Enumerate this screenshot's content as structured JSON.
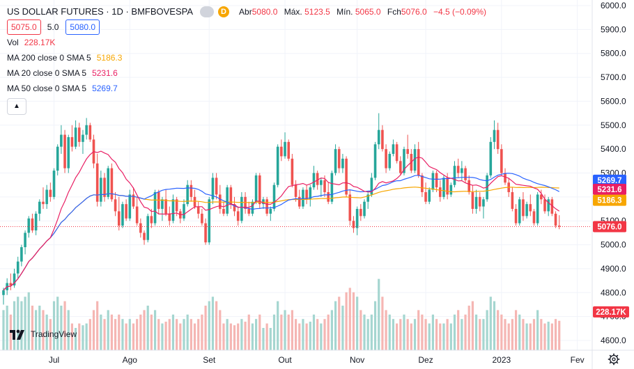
{
  "header": {
    "title": "US DOLLAR FUTURES · 1D · BMFBOVESPA",
    "ohlc": [
      {
        "key": "Abr",
        "value": "5080.0"
      },
      {
        "key": "Máx.",
        "value": "5123.5"
      },
      {
        "key": "Mín.",
        "value": "5065.0"
      },
      {
        "key": "Fch",
        "value": "5076.0"
      }
    ],
    "change": "−4.5 (−0.09%)",
    "sell_price": "5075.0",
    "spread": "5.0",
    "buy_price": "5080.0",
    "flag_letter": "D",
    "collapse_icon": "chevron-up-icon"
  },
  "indicators": [
    {
      "label": "Vol",
      "value": "228.17K",
      "color": "#f23645"
    },
    {
      "label": "MA 200 close 0 SMA 5",
      "value": "5186.3",
      "color": "#f7a600"
    },
    {
      "label": "MA 20 close 0 SMA 5",
      "value": "5231.6",
      "color": "#e91e63"
    },
    {
      "label": "MA 50 close 0 SMA 5",
      "value": "5269.7",
      "color": "#2962ff"
    }
  ],
  "branding": {
    "name": "TradingView"
  },
  "colors": {
    "up": "#26a69a",
    "down": "#ef5350",
    "vol_up": "#a5d6d0",
    "vol_down": "#f5b6b3",
    "ma200": "#f7a600",
    "ma20": "#e91e63",
    "ma50": "#2962ff",
    "last": "#f23645"
  },
  "chart_data": {
    "type": "candlestick",
    "y_axis": {
      "ticks": [
        "6000.0",
        "5900.0",
        "5800.0",
        "5700.0",
        "5600.0",
        "5500.0",
        "5400.0",
        "5300.0",
        "5200.0",
        "5100.0",
        "5000.0",
        "4900.0",
        "4800.0",
        "4700.0",
        "4600.0"
      ],
      "range": [
        4600,
        6000
      ]
    },
    "x_axis": {
      "ticks": [
        {
          "label": "Jul",
          "index": 14
        },
        {
          "label": "Ago",
          "index": 35
        },
        {
          "label": "Set",
          "index": 57
        },
        {
          "label": "Out",
          "index": 78
        },
        {
          "label": "Nov",
          "index": 98
        },
        {
          "label": "Dez",
          "index": 117
        },
        {
          "label": "2023",
          "index": 138
        },
        {
          "label": "Fev",
          "index": 159
        }
      ]
    },
    "last_price_marker": {
      "value": 5076.0,
      "label": "5076.0"
    },
    "axis_badges": [
      {
        "label": "5269.7",
        "value": 5269.7,
        "color": "#2962ff"
      },
      {
        "label": "5231.6",
        "value": 5231.6,
        "color": "#e91e63"
      },
      {
        "label": "5186.3",
        "value": 5186.3,
        "color": "#f7a600"
      },
      {
        "label": "5076.0",
        "value": 5076.0,
        "color": "#f23645"
      }
    ],
    "volume_badge": {
      "label": "228.17K"
    },
    "candles": [
      {
        "o": 4790,
        "h": 4820,
        "l": 4750,
        "c": 4810,
        "v": 0.45
      },
      {
        "o": 4810,
        "h": 4860,
        "l": 4790,
        "c": 4840,
        "v": 0.5
      },
      {
        "o": 4840,
        "h": 4880,
        "l": 4810,
        "c": 4830,
        "v": 0.4
      },
      {
        "o": 4830,
        "h": 4900,
        "l": 4820,
        "c": 4880,
        "v": 0.55
      },
      {
        "o": 4880,
        "h": 4950,
        "l": 4860,
        "c": 4930,
        "v": 0.6
      },
      {
        "o": 4930,
        "h": 5000,
        "l": 4910,
        "c": 4990,
        "v": 0.55
      },
      {
        "o": 4990,
        "h": 5060,
        "l": 4960,
        "c": 5050,
        "v": 0.6
      },
      {
        "o": 5050,
        "h": 5120,
        "l": 5030,
        "c": 5110,
        "v": 0.65
      },
      {
        "o": 5110,
        "h": 5130,
        "l": 5050,
        "c": 5060,
        "v": 0.5
      },
      {
        "o": 5060,
        "h": 5140,
        "l": 5040,
        "c": 5130,
        "v": 0.45
      },
      {
        "o": 5130,
        "h": 5190,
        "l": 5100,
        "c": 5180,
        "v": 0.5
      },
      {
        "o": 5180,
        "h": 5240,
        "l": 5150,
        "c": 5170,
        "v": 0.45
      },
      {
        "o": 5170,
        "h": 5250,
        "l": 5150,
        "c": 5230,
        "v": 0.4
      },
      {
        "o": 5230,
        "h": 5260,
        "l": 5180,
        "c": 5200,
        "v": 0.35
      },
      {
        "o": 5200,
        "h": 5320,
        "l": 5190,
        "c": 5310,
        "v": 0.55
      },
      {
        "o": 5310,
        "h": 5420,
        "l": 5290,
        "c": 5410,
        "v": 0.6
      },
      {
        "o": 5410,
        "h": 5500,
        "l": 5380,
        "c": 5460,
        "v": 0.5
      },
      {
        "o": 5460,
        "h": 5480,
        "l": 5300,
        "c": 5320,
        "v": 0.55
      },
      {
        "o": 5320,
        "h": 5460,
        "l": 5300,
        "c": 5450,
        "v": 0.45
      },
      {
        "o": 5450,
        "h": 5500,
        "l": 5390,
        "c": 5410,
        "v": 0.3
      },
      {
        "o": 5410,
        "h": 5520,
        "l": 5400,
        "c": 5490,
        "v": 0.25
      },
      {
        "o": 5490,
        "h": 5510,
        "l": 5410,
        "c": 5430,
        "v": 0.3
      },
      {
        "o": 5430,
        "h": 5480,
        "l": 5380,
        "c": 5460,
        "v": 0.28
      },
      {
        "o": 5460,
        "h": 5530,
        "l": 5440,
        "c": 5500,
        "v": 0.3
      },
      {
        "o": 5500,
        "h": 5510,
        "l": 5430,
        "c": 5440,
        "v": 0.35
      },
      {
        "o": 5440,
        "h": 5460,
        "l": 5320,
        "c": 5340,
        "v": 0.45
      },
      {
        "o": 5340,
        "h": 5380,
        "l": 5160,
        "c": 5180,
        "v": 0.55
      },
      {
        "o": 5180,
        "h": 5310,
        "l": 5160,
        "c": 5280,
        "v": 0.4
      },
      {
        "o": 5280,
        "h": 5300,
        "l": 5180,
        "c": 5200,
        "v": 0.35
      },
      {
        "o": 5200,
        "h": 5330,
        "l": 5190,
        "c": 5320,
        "v": 0.45
      },
      {
        "o": 5320,
        "h": 5340,
        "l": 5180,
        "c": 5190,
        "v": 0.4
      },
      {
        "o": 5190,
        "h": 5220,
        "l": 5120,
        "c": 5140,
        "v": 0.35
      },
      {
        "o": 5140,
        "h": 5200,
        "l": 5060,
        "c": 5080,
        "v": 0.4
      },
      {
        "o": 5080,
        "h": 5180,
        "l": 5070,
        "c": 5170,
        "v": 0.35
      },
      {
        "o": 5170,
        "h": 5190,
        "l": 5100,
        "c": 5110,
        "v": 0.3
      },
      {
        "o": 5110,
        "h": 5230,
        "l": 5100,
        "c": 5210,
        "v": 0.35
      },
      {
        "o": 5210,
        "h": 5240,
        "l": 5150,
        "c": 5160,
        "v": 0.3
      },
      {
        "o": 5160,
        "h": 5200,
        "l": 5080,
        "c": 5090,
        "v": 0.35
      },
      {
        "o": 5090,
        "h": 5110,
        "l": 5030,
        "c": 5050,
        "v": 0.4
      },
      {
        "o": 5050,
        "h": 5060,
        "l": 5000,
        "c": 5020,
        "v": 0.45
      },
      {
        "o": 5020,
        "h": 5130,
        "l": 5010,
        "c": 5120,
        "v": 0.5
      },
      {
        "o": 5120,
        "h": 5150,
        "l": 5070,
        "c": 5090,
        "v": 0.4
      },
      {
        "o": 5090,
        "h": 5230,
        "l": 5080,
        "c": 5220,
        "v": 0.45
      },
      {
        "o": 5220,
        "h": 5230,
        "l": 5130,
        "c": 5150,
        "v": 0.35
      },
      {
        "o": 5150,
        "h": 5200,
        "l": 5100,
        "c": 5190,
        "v": 0.3
      },
      {
        "o": 5190,
        "h": 5230,
        "l": 5120,
        "c": 5130,
        "v": 0.32
      },
      {
        "o": 5130,
        "h": 5160,
        "l": 5080,
        "c": 5100,
        "v": 0.35
      },
      {
        "o": 5100,
        "h": 5210,
        "l": 5090,
        "c": 5190,
        "v": 0.4
      },
      {
        "o": 5190,
        "h": 5200,
        "l": 5120,
        "c": 5140,
        "v": 0.35
      },
      {
        "o": 5140,
        "h": 5150,
        "l": 5090,
        "c": 5110,
        "v": 0.3
      },
      {
        "o": 5110,
        "h": 5190,
        "l": 5100,
        "c": 5170,
        "v": 0.35
      },
      {
        "o": 5170,
        "h": 5270,
        "l": 5160,
        "c": 5250,
        "v": 0.4
      },
      {
        "o": 5250,
        "h": 5270,
        "l": 5180,
        "c": 5200,
        "v": 0.35
      },
      {
        "o": 5200,
        "h": 5230,
        "l": 5150,
        "c": 5160,
        "v": 0.3
      },
      {
        "o": 5160,
        "h": 5180,
        "l": 5110,
        "c": 5130,
        "v": 0.35
      },
      {
        "o": 5130,
        "h": 5150,
        "l": 5080,
        "c": 5090,
        "v": 0.4
      },
      {
        "o": 5090,
        "h": 5110,
        "l": 5000,
        "c": 5010,
        "v": 0.5
      },
      {
        "o": 5010,
        "h": 5200,
        "l": 5000,
        "c": 5190,
        "v": 0.55
      },
      {
        "o": 5190,
        "h": 5300,
        "l": 5170,
        "c": 5280,
        "v": 0.6
      },
      {
        "o": 5280,
        "h": 5300,
        "l": 5190,
        "c": 5210,
        "v": 0.55
      },
      {
        "o": 5210,
        "h": 5250,
        "l": 5130,
        "c": 5150,
        "v": 0.45
      },
      {
        "o": 5150,
        "h": 5180,
        "l": 5120,
        "c": 5130,
        "v": 0.3
      },
      {
        "o": 5130,
        "h": 5250,
        "l": 5120,
        "c": 5240,
        "v": 0.35
      },
      {
        "o": 5240,
        "h": 5250,
        "l": 5150,
        "c": 5170,
        "v": 0.3
      },
      {
        "o": 5170,
        "h": 5200,
        "l": 5120,
        "c": 5140,
        "v": 0.28
      },
      {
        "o": 5140,
        "h": 5160,
        "l": 5080,
        "c": 5100,
        "v": 0.3
      },
      {
        "o": 5100,
        "h": 5220,
        "l": 5090,
        "c": 5200,
        "v": 0.35
      },
      {
        "o": 5200,
        "h": 5220,
        "l": 5130,
        "c": 5150,
        "v": 0.32
      },
      {
        "o": 5150,
        "h": 5180,
        "l": 5120,
        "c": 5130,
        "v": 0.4
      },
      {
        "o": 5130,
        "h": 5190,
        "l": 5120,
        "c": 5180,
        "v": 0.3
      },
      {
        "o": 5180,
        "h": 5300,
        "l": 5170,
        "c": 5290,
        "v": 0.35
      },
      {
        "o": 5290,
        "h": 5300,
        "l": 5150,
        "c": 5170,
        "v": 0.4
      },
      {
        "o": 5170,
        "h": 5200,
        "l": 5150,
        "c": 5190,
        "v": 0.25
      },
      {
        "o": 5190,
        "h": 5200,
        "l": 5120,
        "c": 5130,
        "v": 0.3
      },
      {
        "o": 5130,
        "h": 5160,
        "l": 5100,
        "c": 5150,
        "v": 0.25
      },
      {
        "o": 5150,
        "h": 5260,
        "l": 5140,
        "c": 5250,
        "v": 0.4
      },
      {
        "o": 5250,
        "h": 5420,
        "l": 5240,
        "c": 5410,
        "v": 0.55
      },
      {
        "o": 5410,
        "h": 5440,
        "l": 5350,
        "c": 5370,
        "v": 0.4
      },
      {
        "o": 5370,
        "h": 5470,
        "l": 5360,
        "c": 5430,
        "v": 0.45
      },
      {
        "o": 5430,
        "h": 5440,
        "l": 5350,
        "c": 5360,
        "v": 0.4
      },
      {
        "o": 5360,
        "h": 5380,
        "l": 5240,
        "c": 5250,
        "v": 0.45
      },
      {
        "o": 5250,
        "h": 5270,
        "l": 5180,
        "c": 5200,
        "v": 0.35
      },
      {
        "o": 5200,
        "h": 5230,
        "l": 5150,
        "c": 5160,
        "v": 0.3
      },
      {
        "o": 5160,
        "h": 5240,
        "l": 5150,
        "c": 5230,
        "v": 0.35
      },
      {
        "o": 5230,
        "h": 5250,
        "l": 5170,
        "c": 5190,
        "v": 0.3
      },
      {
        "o": 5190,
        "h": 5250,
        "l": 5160,
        "c": 5240,
        "v": 0.32
      },
      {
        "o": 5240,
        "h": 5330,
        "l": 5230,
        "c": 5300,
        "v": 0.4
      },
      {
        "o": 5300,
        "h": 5310,
        "l": 5230,
        "c": 5250,
        "v": 0.35
      },
      {
        "o": 5250,
        "h": 5280,
        "l": 5200,
        "c": 5270,
        "v": 0.3
      },
      {
        "o": 5270,
        "h": 5290,
        "l": 5200,
        "c": 5220,
        "v": 0.35
      },
      {
        "o": 5220,
        "h": 5260,
        "l": 5170,
        "c": 5180,
        "v": 0.4
      },
      {
        "o": 5180,
        "h": 5310,
        "l": 5170,
        "c": 5300,
        "v": 0.45
      },
      {
        "o": 5300,
        "h": 5420,
        "l": 5290,
        "c": 5400,
        "v": 0.55
      },
      {
        "o": 5400,
        "h": 5410,
        "l": 5300,
        "c": 5320,
        "v": 0.6
      },
      {
        "o": 5320,
        "h": 5380,
        "l": 5300,
        "c": 5360,
        "v": 0.5
      },
      {
        "o": 5360,
        "h": 5370,
        "l": 5200,
        "c": 5210,
        "v": 0.65
      },
      {
        "o": 5210,
        "h": 5230,
        "l": 5080,
        "c": 5100,
        "v": 0.7
      },
      {
        "o": 5100,
        "h": 5120,
        "l": 5050,
        "c": 5070,
        "v": 0.65
      },
      {
        "o": 5070,
        "h": 5160,
        "l": 5040,
        "c": 5150,
        "v": 0.6
      },
      {
        "o": 5150,
        "h": 5170,
        "l": 5100,
        "c": 5120,
        "v": 0.45
      },
      {
        "o": 5120,
        "h": 5190,
        "l": 5110,
        "c": 5180,
        "v": 0.4
      },
      {
        "o": 5180,
        "h": 5220,
        "l": 5150,
        "c": 5210,
        "v": 0.35
      },
      {
        "o": 5210,
        "h": 5300,
        "l": 5200,
        "c": 5280,
        "v": 0.4
      },
      {
        "o": 5280,
        "h": 5430,
        "l": 5270,
        "c": 5420,
        "v": 0.55
      },
      {
        "o": 5420,
        "h": 5550,
        "l": 5400,
        "c": 5480,
        "v": 0.8
      },
      {
        "o": 5480,
        "h": 5500,
        "l": 5390,
        "c": 5400,
        "v": 0.6
      },
      {
        "o": 5400,
        "h": 5420,
        "l": 5300,
        "c": 5320,
        "v": 0.45
      },
      {
        "o": 5320,
        "h": 5390,
        "l": 5310,
        "c": 5380,
        "v": 0.4
      },
      {
        "o": 5380,
        "h": 5440,
        "l": 5370,
        "c": 5420,
        "v": 0.35
      },
      {
        "o": 5420,
        "h": 5430,
        "l": 5340,
        "c": 5350,
        "v": 0.3
      },
      {
        "o": 5350,
        "h": 5370,
        "l": 5290,
        "c": 5300,
        "v": 0.35
      },
      {
        "o": 5300,
        "h": 5410,
        "l": 5290,
        "c": 5400,
        "v": 0.4
      },
      {
        "o": 5400,
        "h": 5460,
        "l": 5360,
        "c": 5380,
        "v": 0.35
      },
      {
        "o": 5380,
        "h": 5400,
        "l": 5300,
        "c": 5310,
        "v": 0.3
      },
      {
        "o": 5310,
        "h": 5420,
        "l": 5300,
        "c": 5400,
        "v": 0.35
      },
      {
        "o": 5400,
        "h": 5430,
        "l": 5280,
        "c": 5290,
        "v": 0.45
      },
      {
        "o": 5290,
        "h": 5300,
        "l": 5200,
        "c": 5220,
        "v": 0.4
      },
      {
        "o": 5220,
        "h": 5260,
        "l": 5170,
        "c": 5180,
        "v": 0.35
      },
      {
        "o": 5180,
        "h": 5240,
        "l": 5170,
        "c": 5230,
        "v": 0.3
      },
      {
        "o": 5230,
        "h": 5310,
        "l": 5220,
        "c": 5300,
        "v": 0.4
      },
      {
        "o": 5300,
        "h": 5310,
        "l": 5220,
        "c": 5240,
        "v": 0.35
      },
      {
        "o": 5240,
        "h": 5270,
        "l": 5180,
        "c": 5200,
        "v": 0.3
      },
      {
        "o": 5200,
        "h": 5290,
        "l": 5190,
        "c": 5280,
        "v": 0.3
      },
      {
        "o": 5280,
        "h": 5300,
        "l": 5190,
        "c": 5210,
        "v": 0.35
      },
      {
        "o": 5210,
        "h": 5260,
        "l": 5200,
        "c": 5250,
        "v": 0.3
      },
      {
        "o": 5250,
        "h": 5350,
        "l": 5240,
        "c": 5330,
        "v": 0.4
      },
      {
        "o": 5330,
        "h": 5360,
        "l": 5280,
        "c": 5300,
        "v": 0.45
      },
      {
        "o": 5300,
        "h": 5350,
        "l": 5270,
        "c": 5320,
        "v": 0.35
      },
      {
        "o": 5320,
        "h": 5330,
        "l": 5260,
        "c": 5270,
        "v": 0.4
      },
      {
        "o": 5270,
        "h": 5290,
        "l": 5210,
        "c": 5220,
        "v": 0.5
      },
      {
        "o": 5220,
        "h": 5250,
        "l": 5130,
        "c": 5150,
        "v": 0.55
      },
      {
        "o": 5150,
        "h": 5230,
        "l": 5130,
        "c": 5200,
        "v": 0.4
      },
      {
        "o": 5200,
        "h": 5220,
        "l": 5140,
        "c": 5160,
        "v": 0.35
      },
      {
        "o": 5160,
        "h": 5200,
        "l": 5110,
        "c": 5190,
        "v": 0.35
      },
      {
        "o": 5190,
        "h": 5300,
        "l": 5180,
        "c": 5290,
        "v": 0.45
      },
      {
        "o": 5290,
        "h": 5450,
        "l": 5280,
        "c": 5430,
        "v": 0.6
      },
      {
        "o": 5430,
        "h": 5520,
        "l": 5400,
        "c": 5480,
        "v": 0.55
      },
      {
        "o": 5480,
        "h": 5510,
        "l": 5380,
        "c": 5400,
        "v": 0.45
      },
      {
        "o": 5400,
        "h": 5420,
        "l": 5290,
        "c": 5300,
        "v": 0.4
      },
      {
        "o": 5300,
        "h": 5320,
        "l": 5250,
        "c": 5260,
        "v": 0.35
      },
      {
        "o": 5260,
        "h": 5280,
        "l": 5200,
        "c": 5220,
        "v": 0.3
      },
      {
        "o": 5220,
        "h": 5240,
        "l": 5140,
        "c": 5150,
        "v": 0.35
      },
      {
        "o": 5150,
        "h": 5170,
        "l": 5080,
        "c": 5090,
        "v": 0.45
      },
      {
        "o": 5090,
        "h": 5200,
        "l": 5080,
        "c": 5190,
        "v": 0.4
      },
      {
        "o": 5190,
        "h": 5220,
        "l": 5100,
        "c": 5120,
        "v": 0.35
      },
      {
        "o": 5120,
        "h": 5180,
        "l": 5110,
        "c": 5170,
        "v": 0.3
      },
      {
        "o": 5170,
        "h": 5210,
        "l": 5120,
        "c": 5140,
        "v": 0.3
      },
      {
        "o": 5140,
        "h": 5150,
        "l": 5080,
        "c": 5090,
        "v": 0.35
      },
      {
        "o": 5090,
        "h": 5220,
        "l": 5080,
        "c": 5210,
        "v": 0.45
      },
      {
        "o": 5210,
        "h": 5230,
        "l": 5170,
        "c": 5190,
        "v": 0.35
      },
      {
        "o": 5190,
        "h": 5210,
        "l": 5130,
        "c": 5140,
        "v": 0.3
      },
      {
        "o": 5140,
        "h": 5200,
        "l": 5120,
        "c": 5190,
        "v": 0.32
      },
      {
        "o": 5190,
        "h": 5200,
        "l": 5120,
        "c": 5130,
        "v": 0.3
      },
      {
        "o": 5130,
        "h": 5140,
        "l": 5070,
        "c": 5080,
        "v": 0.35
      },
      {
        "o": 5080,
        "h": 5123.5,
        "l": 5065,
        "c": 5076,
        "v": 0.33
      }
    ]
  }
}
